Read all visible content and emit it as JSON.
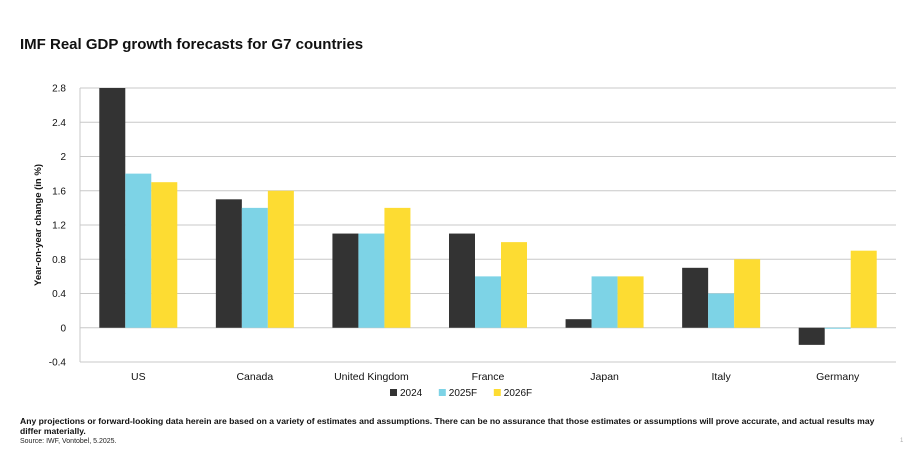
{
  "chart_data": {
    "type": "bar",
    "title": "IMF Real GDP growth forecasts for G7 countries",
    "ylabel": "Year-on-year change (in %)",
    "xlabel": "",
    "categories": [
      "US",
      "Canada",
      "United Kingdom",
      "France",
      "Japan",
      "Italy",
      "Germany"
    ],
    "series": [
      {
        "name": "2024",
        "color": "#333333",
        "values": [
          2.8,
          1.5,
          1.1,
          1.1,
          0.1,
          0.7,
          -0.2
        ]
      },
      {
        "name": "2025F",
        "color": "#7dd3e6",
        "values": [
          1.8,
          1.4,
          1.1,
          0.6,
          0.6,
          0.4,
          0.0
        ]
      },
      {
        "name": "2026F",
        "color": "#fddc32",
        "values": [
          1.7,
          1.6,
          1.4,
          1.0,
          0.6,
          0.8,
          0.9
        ]
      }
    ],
    "ylim": [
      -0.4,
      2.8
    ],
    "yticks": [
      "2.8",
      "2.4",
      "2",
      "1.6",
      "1.2",
      "0.8",
      "0.4",
      "0",
      "-0.4"
    ],
    "grid": true,
    "legend_position": "bottom-center"
  },
  "footer": {
    "disclaimer": "Any projections or forward-looking data herein are based on a variety of estimates and assumptions. There can be no assurance that those estimates or assumptions will prove accurate, and actual results may differ materially.",
    "source": "Source: IWF, Vontobel, 5.2025.",
    "page_mark": "1"
  }
}
